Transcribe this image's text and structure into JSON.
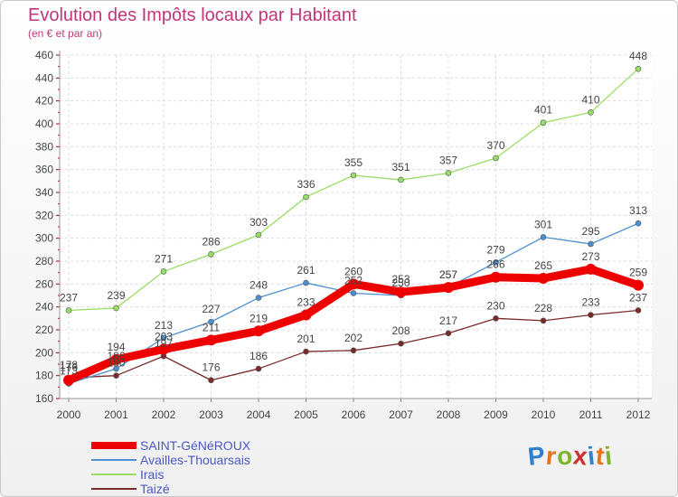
{
  "header": {
    "title": "Evolution des Impôts locaux par Habitant",
    "subtitle": "(en € et par an)"
  },
  "logo": {
    "letters": [
      "P",
      "r",
      "o",
      "x",
      "i",
      "t",
      "i"
    ],
    "colors": [
      "#2f7fd0",
      "#e5731b",
      "#7fb32b",
      "#d23030",
      "#2f7fd0",
      "#e5731b",
      "#7fb32b"
    ]
  },
  "chart_data": {
    "type": "line",
    "title": "Evolution des Impôts locaux par Habitant",
    "subtitle": "(en € et par an)",
    "x": [
      "2000",
      "2001",
      "2002",
      "2003",
      "2004",
      "2005",
      "2006",
      "2007",
      "2008",
      "2009",
      "2010",
      "2011",
      "2012"
    ],
    "ylim": [
      160,
      460
    ],
    "yticks": [
      160,
      180,
      200,
      220,
      240,
      260,
      280,
      300,
      320,
      340,
      360,
      380,
      400,
      420,
      440,
      460
    ],
    "grid": true,
    "legend": "bottom-left",
    "series": [
      {
        "name": "SAINT-GéNéROUX",
        "color": "#ee0000",
        "values": [
          176,
          194,
          203,
          211,
          219,
          233,
          260,
          253,
          257,
          266,
          265,
          273,
          259
        ]
      },
      {
        "name": "Availles-Thouarsais",
        "color": "#4d8fcf",
        "values": [
          173,
          186,
          213,
          227,
          248,
          261,
          252,
          250,
          257,
          279,
          301,
          295,
          313
        ]
      },
      {
        "name": "Irais",
        "color": "#99dd66",
        "values": [
          237,
          239,
          271,
          286,
          303,
          336,
          355,
          351,
          357,
          370,
          401,
          410,
          448
        ]
      },
      {
        "name": "Taizé",
        "color": "#7a2a2a",
        "values": [
          178,
          180,
          197,
          176,
          186,
          201,
          202,
          208,
          217,
          230,
          228,
          233,
          237
        ]
      }
    ]
  }
}
